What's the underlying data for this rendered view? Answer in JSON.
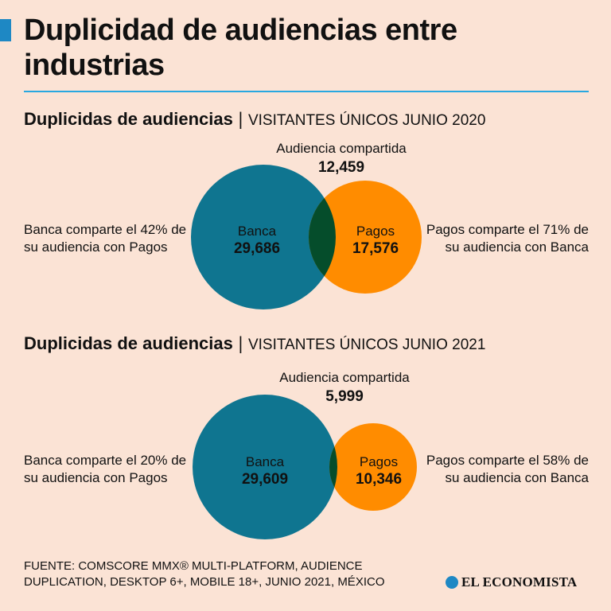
{
  "title": "Duplicidad de audiencias entre industrias",
  "colors": {
    "accent": "#1e88c4",
    "rule": "#29a8e0",
    "banca": "#0f7590",
    "pagos": "#ff8c00",
    "overlap": "#054d2b",
    "background": "#fbe3d5"
  },
  "sections": [
    {
      "heading_bold": "Duplicidas de audiencias",
      "separator": "|",
      "heading_sub": "VISITANTES ÚNICOS JUNIO 2020",
      "shared_label": "Audiencia compartida",
      "shared_value": "12,459",
      "banca_name": "Banca",
      "banca_value": "29,686",
      "pagos_name": "Pagos",
      "pagos_value": "17,576",
      "left_text": "Banca comparte el 42% de su audiencia con Pagos",
      "right_text": "Pagos comparte el 71% de su audiencia con Banca"
    },
    {
      "heading_bold": "Duplicidas de audiencias",
      "separator": "|",
      "heading_sub": "VISITANTES ÚNICOS JUNIO 2021",
      "shared_label": "Audiencia compartida",
      "shared_value": "5,999",
      "banca_name": "Banca",
      "banca_value": "29,609",
      "pagos_name": "Pagos",
      "pagos_value": "10,346",
      "left_text": "Banca comparte el 20% de su audiencia con Pagos",
      "right_text": "Pagos comparte el 58% de su audiencia con Banca"
    }
  ],
  "source": "FUENTE: COMSCORE MMX® MULTI-PLATFORM, AUDIENCE DUPLICATION, DESKTOP 6+, MOBILE 18+, JUNIO 2021, MÉXICO",
  "brand": "EL ECONOMISTA",
  "brand_icon": "economista-logo-icon"
}
